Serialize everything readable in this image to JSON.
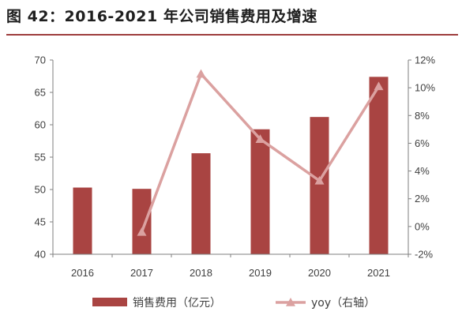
{
  "title": "图 42：2016-2021 年公司销售费用及增速",
  "colors": {
    "bar": "#a94442",
    "line": "#dba1a0",
    "title_rule": "#9e3d3d",
    "axis": "#7f7f7f",
    "text": "#404040"
  },
  "chart_data": {
    "type": "bar",
    "title": "图 42：2016-2021 年公司销售费用及增速",
    "categories": [
      "2016",
      "2017",
      "2018",
      "2019",
      "2020",
      "2021"
    ],
    "series": [
      {
        "name": "销售费用（亿元）",
        "type": "bar",
        "axis": "left",
        "values": [
          50.3,
          50.1,
          55.6,
          59.3,
          61.2,
          67.4
        ]
      },
      {
        "name": "yoy（右轴）",
        "type": "line",
        "axis": "right",
        "marker": "triangle",
        "values": [
          null,
          -0.4,
          11.0,
          6.3,
          3.3,
          10.1
        ]
      }
    ],
    "y_left": {
      "min": 40,
      "max": 70,
      "step": 5,
      "ticks": [
        "40",
        "45",
        "50",
        "55",
        "60",
        "65",
        "70"
      ]
    },
    "y_right": {
      "min": -2,
      "max": 12,
      "step": 2,
      "unit": "%",
      "ticks": [
        "-2%",
        "0%",
        "2%",
        "4%",
        "6%",
        "8%",
        "10%",
        "12%"
      ]
    },
    "grid": false,
    "legend_position": "bottom"
  }
}
